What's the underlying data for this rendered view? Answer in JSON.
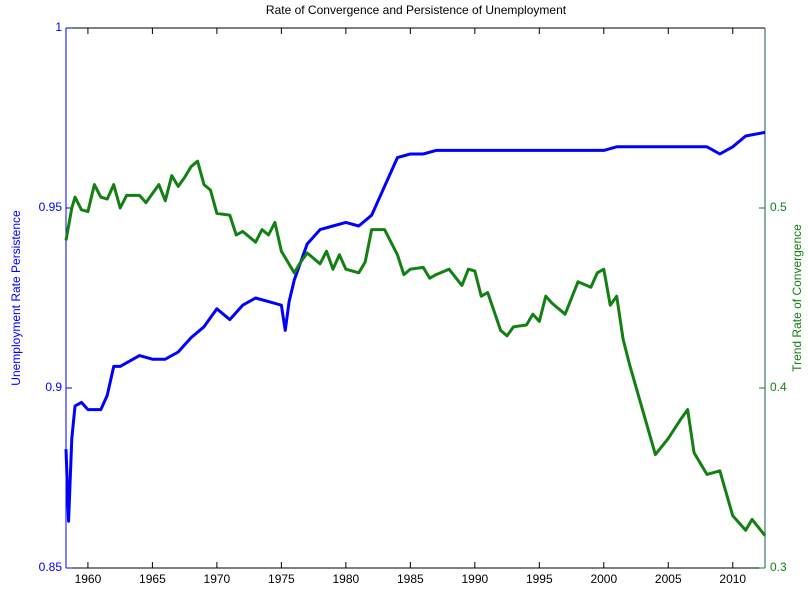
{
  "chart_data": {
    "type": "line",
    "title": "Rate of Convergence and Persistence of Unemployment",
    "y_label": "Unemployment Rate Persistence",
    "y2_label": "Trend Rate of Convergence",
    "xlim": [
      1958.3,
      2012.5
    ],
    "xticks": [
      1960,
      1965,
      1970,
      1975,
      1980,
      1985,
      1990,
      1995,
      2000,
      2005,
      2010
    ],
    "ylim": [
      0.85,
      1
    ],
    "yticks": [
      0.85,
      0.9,
      0.95,
      1
    ],
    "y2lim": [
      0.3,
      0.6
    ],
    "y2ticks": [
      0.3,
      0.4,
      0.5
    ],
    "left_axis_color": "#0000ff",
    "right_axis_color": "#1a5a5a",
    "series": [
      {
        "color": "#0000ff",
        "x": [
          1958.3,
          1958.5,
          1958.75,
          1959,
          1959.5,
          1960,
          1960.5,
          1961,
          1961.5,
          1962,
          1962.5,
          1963,
          1964,
          1965,
          1966,
          1967,
          1968,
          1969,
          1970,
          1971,
          1972,
          1973,
          1974,
          1975,
          1975.3,
          1975.6,
          1976,
          1977,
          1978,
          1979,
          1980,
          1981,
          1982,
          1983,
          1984,
          1985,
          1986,
          1987,
          1990,
          1995,
          2000,
          2001,
          2002,
          2005,
          2008,
          2009,
          2010,
          2011,
          2012.5
        ],
        "values": [
          0.883,
          0.863,
          0.886,
          0.895,
          0.896,
          0.894,
          0.894,
          0.894,
          0.898,
          0.906,
          0.906,
          0.907,
          0.909,
          0.908,
          0.908,
          0.91,
          0.914,
          0.917,
          0.922,
          0.919,
          0.923,
          0.925,
          0.924,
          0.923,
          0.916,
          0.924,
          0.93,
          0.94,
          0.944,
          0.945,
          0.946,
          0.945,
          0.948,
          0.956,
          0.964,
          0.965,
          0.965,
          0.966,
          0.966,
          0.966,
          0.966,
          0.967,
          0.967,
          0.967,
          0.967,
          0.965,
          0.967,
          0.97,
          0.971
        ]
      },
      {
        "color": "#138013",
        "axis": "y2",
        "x": [
          1958.3,
          1958.75,
          1959,
          1959.5,
          1960,
          1960.5,
          1961,
          1961.5,
          1962,
          1962.5,
          1963,
          1964,
          1964.5,
          1965.5,
          1966,
          1966.5,
          1967,
          1967.5,
          1968,
          1968.5,
          1969,
          1969.5,
          1970,
          1971,
          1971.5,
          1972,
          1973,
          1973.5,
          1974,
          1974.5,
          1975,
          1976,
          1976.5,
          1977,
          1978,
          1978.5,
          1979,
          1979.5,
          1980,
          1981,
          1981.5,
          1982,
          1983,
          1984,
          1984.5,
          1985,
          1986,
          1986.5,
          1987,
          1988,
          1989,
          1989.5,
          1990,
          1990.5,
          1991,
          1992,
          1992.5,
          1993,
          1994,
          1994.5,
          1995,
          1995.5,
          1996,
          1997,
          1998,
          1999,
          1999.5,
          2000,
          2000.5,
          2001,
          2001.5,
          2002,
          2003,
          2004,
          2005,
          2006,
          2006.5,
          2007,
          2008,
          2009,
          2010,
          2011,
          2011.5,
          2012.5
        ],
        "values": [
          0.482,
          0.5,
          0.506,
          0.499,
          0.498,
          0.513,
          0.506,
          0.505,
          0.513,
          0.5,
          0.507,
          0.507,
          0.503,
          0.513,
          0.504,
          0.518,
          0.512,
          0.517,
          0.523,
          0.526,
          0.513,
          0.51,
          0.497,
          0.496,
          0.485,
          0.487,
          0.481,
          0.488,
          0.485,
          0.492,
          0.476,
          0.464,
          0.47,
          0.475,
          0.469,
          0.476,
          0.466,
          0.474,
          0.466,
          0.464,
          0.47,
          0.488,
          0.488,
          0.474,
          0.463,
          0.466,
          0.467,
          0.461,
          0.463,
          0.466,
          0.457,
          0.466,
          0.465,
          0.451,
          0.453,
          0.432,
          0.429,
          0.434,
          0.435,
          0.441,
          0.437,
          0.451,
          0.447,
          0.441,
          0.459,
          0.456,
          0.464,
          0.466,
          0.446,
          0.451,
          0.427,
          0.413,
          0.388,
          0.363,
          0.372,
          0.383,
          0.388,
          0.364,
          0.352,
          0.354,
          0.329,
          0.321,
          0.327,
          0.318
        ]
      }
    ]
  }
}
